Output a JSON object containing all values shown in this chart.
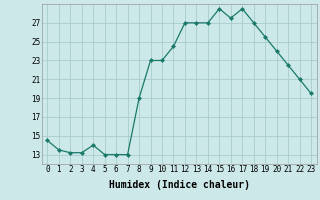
{
  "x": [
    0,
    1,
    2,
    3,
    4,
    5,
    6,
    7,
    8,
    9,
    10,
    11,
    12,
    13,
    14,
    15,
    16,
    17,
    18,
    19,
    20,
    21,
    22,
    23
  ],
  "y": [
    14.5,
    13.5,
    13.2,
    13.2,
    14.0,
    13.0,
    13.0,
    13.0,
    19.0,
    23.0,
    23.0,
    24.5,
    27.0,
    27.0,
    27.0,
    28.5,
    27.5,
    28.5,
    27.0,
    25.5,
    24.0,
    22.5,
    21.0,
    19.5
  ],
  "xlabel": "Humidex (Indice chaleur)",
  "ylabel": "",
  "xlim": [
    -0.5,
    23.5
  ],
  "ylim": [
    12.0,
    29.0
  ],
  "yticks": [
    13,
    15,
    17,
    19,
    21,
    23,
    25,
    27
  ],
  "xticks": [
    0,
    1,
    2,
    3,
    4,
    5,
    6,
    7,
    8,
    9,
    10,
    11,
    12,
    13,
    14,
    15,
    16,
    17,
    18,
    19,
    20,
    21,
    22,
    23
  ],
  "line_color": "#1a7a6a",
  "marker": "D",
  "marker_size": 2.0,
  "bg_color": "#cce8e8",
  "grid_color": "#aacccc",
  "axis_fontsize": 6.5,
  "tick_fontsize": 5.5,
  "xlabel_fontsize": 7.0
}
